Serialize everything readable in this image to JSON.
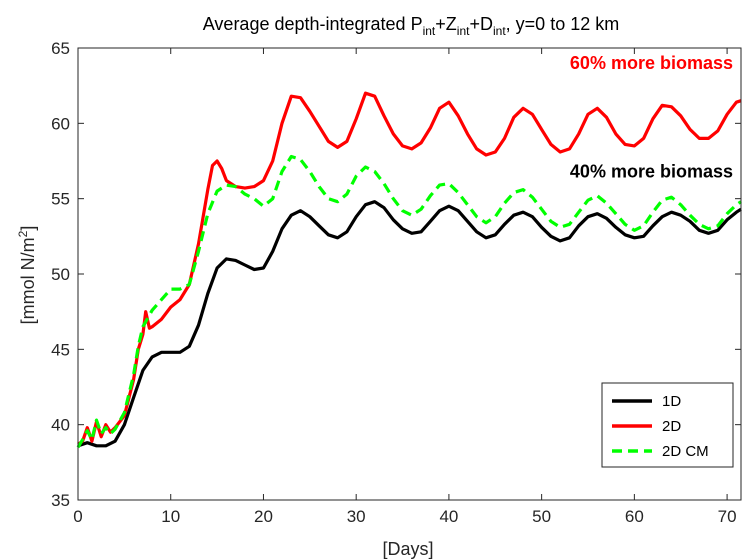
{
  "chart_data": {
    "type": "line",
    "title": {
      "prefix": "Average depth-integrated P",
      "sub1": "int",
      "plus1": "+Z",
      "sub2": "int",
      "plus2": "+D",
      "sub3": "int",
      "suffix": ", y=0 to 12 km"
    },
    "xlabel": "[Days]",
    "ylabel": {
      "main": "[mmol N/m",
      "sup": "2",
      "close": "]"
    },
    "xlim": [
      0,
      71.5
    ],
    "ylim": [
      35,
      65
    ],
    "xticks": [
      0,
      10,
      20,
      30,
      40,
      50,
      60,
      70
    ],
    "yticks": [
      35,
      40,
      45,
      50,
      55,
      60,
      65
    ],
    "grid": false,
    "legend_position": "bottom-right",
    "annotations": [
      {
        "text": "60% more biomass",
        "color": "#ff0000",
        "x": 71.5,
        "y": 63.6
      },
      {
        "text": "40% more biomass",
        "color": "#000000",
        "x": 71.5,
        "y": 56.4
      }
    ],
    "series": [
      {
        "name": "1D",
        "color": "#000000",
        "dash": "solid",
        "points": [
          [
            0,
            38.6
          ],
          [
            1,
            38.8
          ],
          [
            2,
            38.6
          ],
          [
            3,
            38.6
          ],
          [
            4,
            38.9
          ],
          [
            5,
            40.0
          ],
          [
            6,
            41.8
          ],
          [
            7,
            43.6
          ],
          [
            8,
            44.5
          ],
          [
            9,
            44.8
          ],
          [
            10,
            44.8
          ],
          [
            11,
            44.8
          ],
          [
            12,
            45.2
          ],
          [
            13,
            46.6
          ],
          [
            14,
            48.7
          ],
          [
            15,
            50.4
          ],
          [
            16,
            51.0
          ],
          [
            17,
            50.9
          ],
          [
            18,
            50.6
          ],
          [
            19,
            50.3
          ],
          [
            20,
            50.4
          ],
          [
            21,
            51.5
          ],
          [
            22,
            53.0
          ],
          [
            23,
            53.9
          ],
          [
            24,
            54.2
          ],
          [
            25,
            53.8
          ],
          [
            26,
            53.2
          ],
          [
            27,
            52.6
          ],
          [
            28,
            52.4
          ],
          [
            29,
            52.8
          ],
          [
            30,
            53.8
          ],
          [
            31,
            54.6
          ],
          [
            32,
            54.8
          ],
          [
            33,
            54.4
          ],
          [
            34,
            53.6
          ],
          [
            35,
            53.0
          ],
          [
            36,
            52.7
          ],
          [
            37,
            52.8
          ],
          [
            38,
            53.5
          ],
          [
            39,
            54.2
          ],
          [
            40,
            54.5
          ],
          [
            41,
            54.2
          ],
          [
            42,
            53.5
          ],
          [
            43,
            52.8
          ],
          [
            44,
            52.4
          ],
          [
            45,
            52.6
          ],
          [
            46,
            53.3
          ],
          [
            47,
            53.9
          ],
          [
            48,
            54.1
          ],
          [
            49,
            53.8
          ],
          [
            50,
            53.1
          ],
          [
            51,
            52.5
          ],
          [
            52,
            52.2
          ],
          [
            53,
            52.4
          ],
          [
            54,
            53.2
          ],
          [
            55,
            53.8
          ],
          [
            56,
            54.0
          ],
          [
            57,
            53.7
          ],
          [
            58,
            53.1
          ],
          [
            59,
            52.6
          ],
          [
            60,
            52.4
          ],
          [
            61,
            52.5
          ],
          [
            62,
            53.2
          ],
          [
            63,
            53.8
          ],
          [
            64,
            54.1
          ],
          [
            65,
            53.9
          ],
          [
            66,
            53.5
          ],
          [
            67,
            52.9
          ],
          [
            68,
            52.7
          ],
          [
            69,
            52.9
          ],
          [
            70,
            53.6
          ],
          [
            71,
            54.1
          ],
          [
            71.5,
            54.3
          ]
        ]
      },
      {
        "name": "2D",
        "color": "#ff0000",
        "dash": "solid",
        "points": [
          [
            0,
            38.7
          ],
          [
            0.5,
            38.9
          ],
          [
            1,
            39.8
          ],
          [
            1.5,
            38.9
          ],
          [
            2,
            40.2
          ],
          [
            2.5,
            39.2
          ],
          [
            3,
            40.0
          ],
          [
            3.5,
            39.5
          ],
          [
            4,
            39.8
          ],
          [
            5,
            40.6
          ],
          [
            6,
            43.0
          ],
          [
            6.5,
            45.0
          ],
          [
            7,
            46.0
          ],
          [
            7.3,
            47.5
          ],
          [
            7.7,
            46.4
          ],
          [
            8,
            46.5
          ],
          [
            9,
            47.0
          ],
          [
            10,
            47.8
          ],
          [
            11,
            48.3
          ],
          [
            12,
            49.3
          ],
          [
            13,
            52.0
          ],
          [
            14,
            55.6
          ],
          [
            14.5,
            57.2
          ],
          [
            15,
            57.5
          ],
          [
            15.5,
            57.0
          ],
          [
            16,
            56.2
          ],
          [
            17,
            55.8
          ],
          [
            18,
            55.7
          ],
          [
            19,
            55.8
          ],
          [
            20,
            56.2
          ],
          [
            21,
            57.5
          ],
          [
            22,
            60.0
          ],
          [
            23,
            61.8
          ],
          [
            24,
            61.7
          ],
          [
            25,
            60.8
          ],
          [
            26,
            59.8
          ],
          [
            27,
            58.8
          ],
          [
            28,
            58.4
          ],
          [
            29,
            58.8
          ],
          [
            30,
            60.3
          ],
          [
            31,
            62.0
          ],
          [
            32,
            61.8
          ],
          [
            33,
            60.5
          ],
          [
            34,
            59.3
          ],
          [
            35,
            58.5
          ],
          [
            36,
            58.3
          ],
          [
            37,
            58.7
          ],
          [
            38,
            59.7
          ],
          [
            39,
            61.0
          ],
          [
            40,
            61.4
          ],
          [
            41,
            60.5
          ],
          [
            42,
            59.3
          ],
          [
            43,
            58.3
          ],
          [
            44,
            57.9
          ],
          [
            45,
            58.1
          ],
          [
            46,
            59.0
          ],
          [
            47,
            60.4
          ],
          [
            48,
            61.0
          ],
          [
            49,
            60.6
          ],
          [
            50,
            59.6
          ],
          [
            51,
            58.6
          ],
          [
            52,
            58.1
          ],
          [
            53,
            58.3
          ],
          [
            54,
            59.3
          ],
          [
            55,
            60.6
          ],
          [
            56,
            61.0
          ],
          [
            57,
            60.4
          ],
          [
            58,
            59.3
          ],
          [
            59,
            58.6
          ],
          [
            60,
            58.5
          ],
          [
            61,
            59.0
          ],
          [
            62,
            60.3
          ],
          [
            63,
            61.2
          ],
          [
            64,
            61.1
          ],
          [
            65,
            60.5
          ],
          [
            66,
            59.6
          ],
          [
            67,
            59.0
          ],
          [
            68,
            59.0
          ],
          [
            69,
            59.5
          ],
          [
            70,
            60.6
          ],
          [
            71,
            61.4
          ],
          [
            71.5,
            61.5
          ]
        ]
      },
      {
        "name": "2D CM",
        "color": "#00ff00",
        "dash": "dashed",
        "points": [
          [
            0,
            38.5
          ],
          [
            0.5,
            39.0
          ],
          [
            1,
            39.6
          ],
          [
            1.5,
            39.0
          ],
          [
            2,
            40.3
          ],
          [
            2.5,
            39.4
          ],
          [
            3,
            39.8
          ],
          [
            3.5,
            39.4
          ],
          [
            4,
            39.7
          ],
          [
            5,
            40.8
          ],
          [
            6,
            43.3
          ],
          [
            6.5,
            45.2
          ],
          [
            7,
            46.5
          ],
          [
            8,
            47.6
          ],
          [
            9,
            48.3
          ],
          [
            10,
            49.0
          ],
          [
            11,
            49.0
          ],
          [
            12,
            49.3
          ],
          [
            13,
            51.5
          ],
          [
            14,
            54.0
          ],
          [
            15,
            55.5
          ],
          [
            16,
            55.9
          ],
          [
            17,
            55.8
          ],
          [
            18,
            55.3
          ],
          [
            19,
            55.0
          ],
          [
            20,
            54.5
          ],
          [
            21,
            55.0
          ],
          [
            22,
            56.8
          ],
          [
            23,
            57.8
          ],
          [
            24,
            57.6
          ],
          [
            25,
            56.8
          ],
          [
            26,
            55.8
          ],
          [
            27,
            55.0
          ],
          [
            28,
            54.8
          ],
          [
            29,
            55.3
          ],
          [
            30,
            56.5
          ],
          [
            31,
            57.1
          ],
          [
            32,
            56.8
          ],
          [
            33,
            56.0
          ],
          [
            34,
            55.0
          ],
          [
            35,
            54.2
          ],
          [
            36,
            53.9
          ],
          [
            37,
            54.3
          ],
          [
            38,
            55.2
          ],
          [
            39,
            55.9
          ],
          [
            40,
            56.0
          ],
          [
            41,
            55.4
          ],
          [
            42,
            54.6
          ],
          [
            43,
            53.8
          ],
          [
            44,
            53.4
          ],
          [
            45,
            53.8
          ],
          [
            46,
            54.7
          ],
          [
            47,
            55.4
          ],
          [
            48,
            55.6
          ],
          [
            49,
            55.1
          ],
          [
            50,
            54.3
          ],
          [
            51,
            53.5
          ],
          [
            52,
            53.1
          ],
          [
            53,
            53.3
          ],
          [
            54,
            54.1
          ],
          [
            55,
            54.9
          ],
          [
            56,
            55.2
          ],
          [
            57,
            54.7
          ],
          [
            58,
            54.0
          ],
          [
            59,
            53.3
          ],
          [
            60,
            52.9
          ],
          [
            61,
            53.2
          ],
          [
            62,
            54.1
          ],
          [
            63,
            54.9
          ],
          [
            64,
            55.1
          ],
          [
            65,
            54.6
          ],
          [
            66,
            53.9
          ],
          [
            67,
            53.3
          ],
          [
            68,
            53.0
          ],
          [
            69,
            53.2
          ],
          [
            70,
            54.0
          ],
          [
            71,
            54.6
          ],
          [
            71.5,
            54.8
          ]
        ]
      }
    ]
  }
}
